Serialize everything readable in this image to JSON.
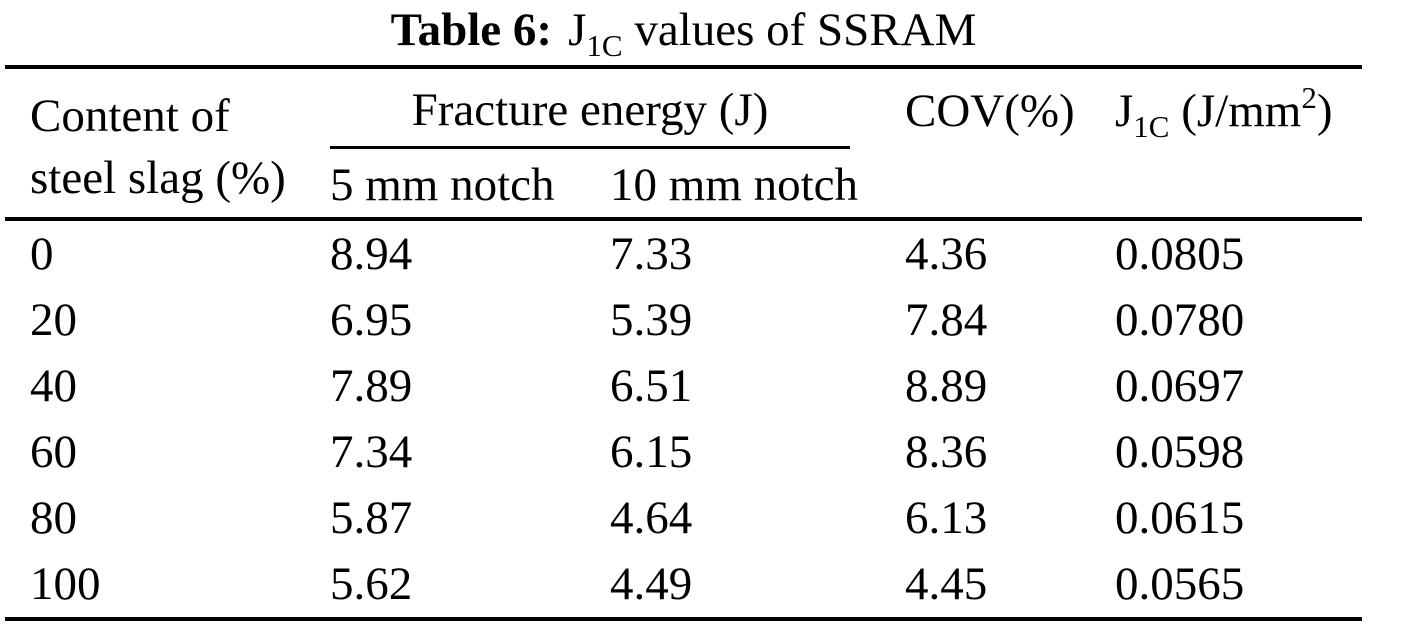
{
  "caption": {
    "number": "Table 6:",
    "j_base": "J",
    "j_sub": "1C",
    "rest": " values of SSRAM"
  },
  "table": {
    "header": {
      "col1_line1": "Content of",
      "col1_line2": "steel slag (%)",
      "group": "Fracture energy (J)",
      "sub1": "5 mm notch",
      "sub2": "10 mm notch",
      "col4": "COV(%)",
      "col5_base": "J",
      "col5_sub": "1C",
      "col5_mid": " (J/mm",
      "col5_sup": "2",
      "col5_end": ")"
    },
    "rows": [
      {
        "content": "0",
        "notch5": "8.94",
        "notch10": "7.33",
        "cov": "4.36",
        "j1c": "0.0805"
      },
      {
        "content": "20",
        "notch5": "6.95",
        "notch10": "5.39",
        "cov": "7.84",
        "j1c": "0.0780"
      },
      {
        "content": "40",
        "notch5": "7.89",
        "notch10": "6.51",
        "cov": "8.89",
        "j1c": "0.0697"
      },
      {
        "content": "60",
        "notch5": "7.34",
        "notch10": "6.15",
        "cov": "8.36",
        "j1c": "0.0598"
      },
      {
        "content": "80",
        "notch5": "5.87",
        "notch10": "4.64",
        "cov": "6.13",
        "j1c": "0.0615"
      },
      {
        "content": "100",
        "notch5": "5.62",
        "notch10": "4.49",
        "cov": "4.45",
        "j1c": "0.0565"
      }
    ]
  },
  "chart_data": {
    "type": "table",
    "title": "Table 6: J1C values of SSRAM",
    "columns": [
      "Content of steel slag (%)",
      "Fracture energy (J) - 5 mm notch",
      "Fracture energy (J) - 10 mm notch",
      "COV(%)",
      "J1C (J/mm2)"
    ],
    "rows": [
      [
        0,
        8.94,
        7.33,
        4.36,
        0.0805
      ],
      [
        20,
        6.95,
        5.39,
        7.84,
        0.078
      ],
      [
        40,
        7.89,
        6.51,
        8.89,
        0.0697
      ],
      [
        60,
        7.34,
        6.15,
        8.36,
        0.0598
      ],
      [
        80,
        5.87,
        4.64,
        6.13,
        0.0615
      ],
      [
        100,
        5.62,
        4.49,
        4.45,
        0.0565
      ]
    ]
  },
  "colors": {
    "text": "#000000",
    "background": "#ffffff",
    "rule": "#000000"
  }
}
